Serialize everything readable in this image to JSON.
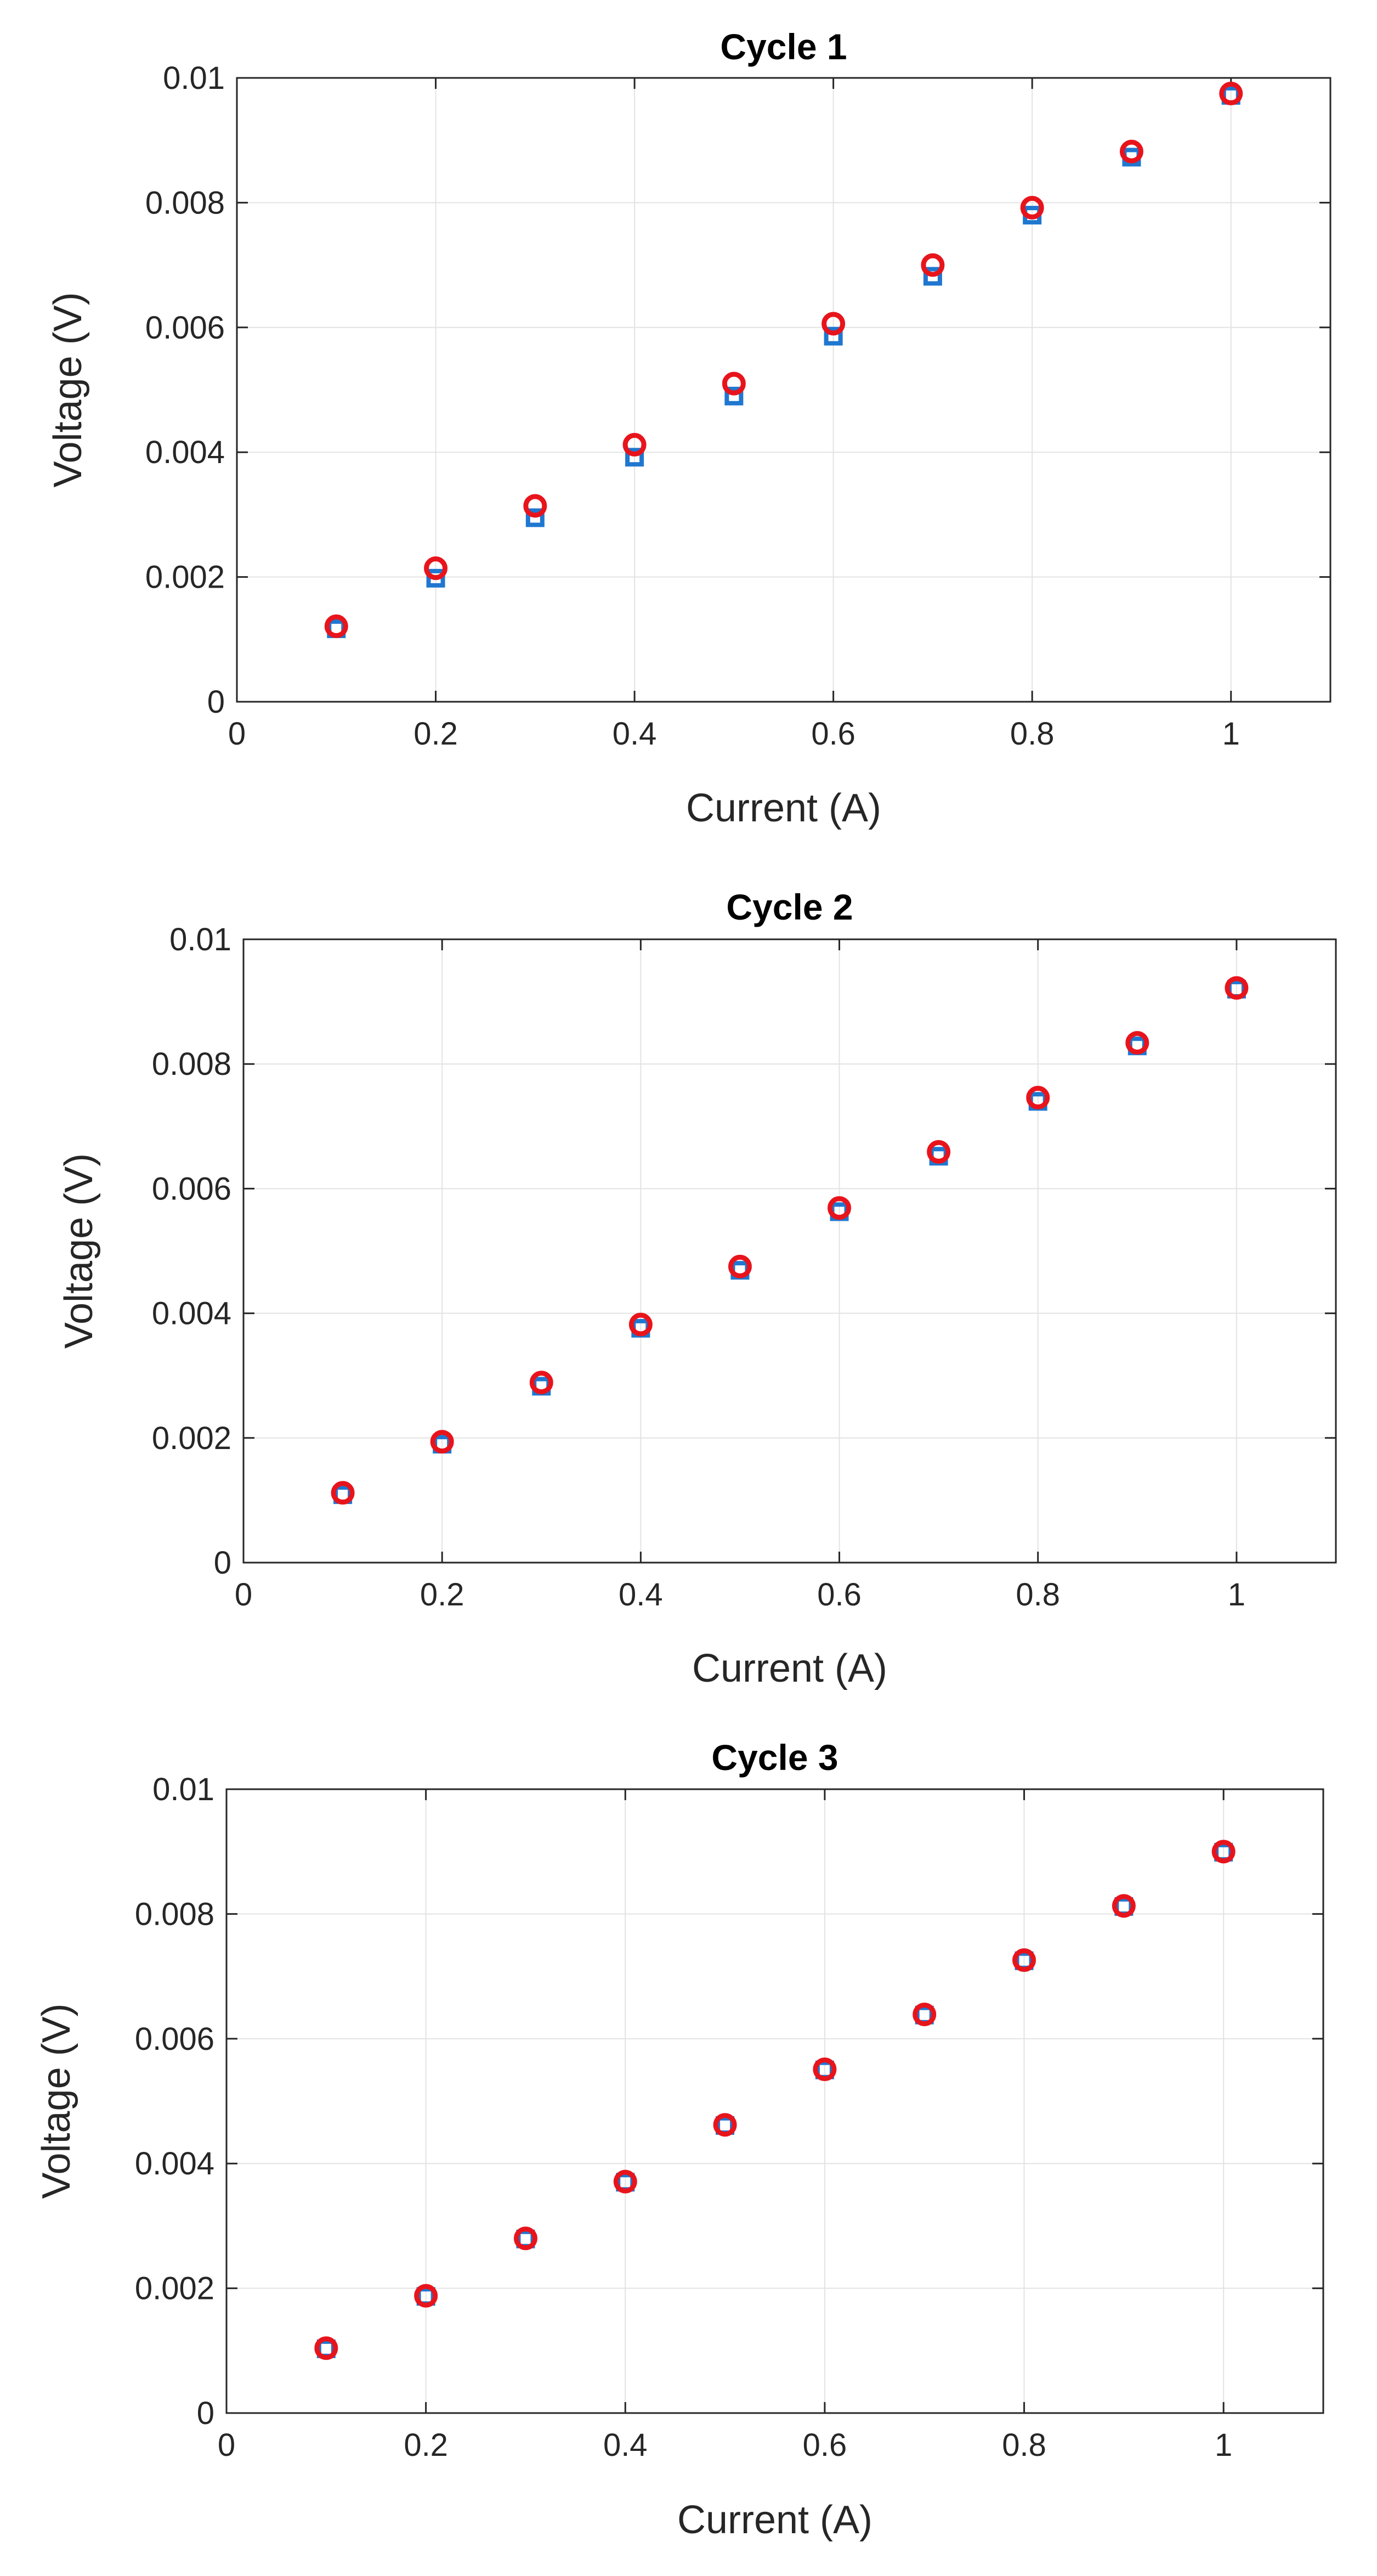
{
  "chart_data": [
    {
      "type": "scatter",
      "title": "Cycle 1",
      "xlabel": "Current (A)",
      "ylabel": "Voltage (V)",
      "xlim": [
        0,
        1.1
      ],
      "ylim": [
        0,
        0.01
      ],
      "xticks": [
        "0",
        "0.2",
        "0.4",
        "0.6",
        "0.8",
        "1"
      ],
      "yticks": [
        "0",
        "0.002",
        "0.004",
        "0.006",
        "0.008",
        "0.01"
      ],
      "grid": true,
      "x": [
        0.1,
        0.2,
        0.3,
        0.4,
        0.5,
        0.6,
        0.7,
        0.8,
        0.9,
        1.0
      ],
      "series": [
        {
          "name": "squares",
          "marker": "square",
          "color": "#1f77d0",
          "values": [
            0.00117,
            0.00198,
            0.00295,
            0.00392,
            0.0049,
            0.00586,
            0.00682,
            0.0078,
            0.00873,
            0.00972
          ]
        },
        {
          "name": "circles",
          "marker": "circle",
          "color": "#e8141c",
          "values": [
            0.00121,
            0.00214,
            0.00314,
            0.00412,
            0.0051,
            0.00606,
            0.007,
            0.00792,
            0.00882,
            0.00975
          ]
        }
      ]
    },
    {
      "type": "scatter",
      "title": "Cycle 2",
      "xlabel": "Current (A)",
      "ylabel": "Voltage (V)",
      "xlim": [
        0,
        1.1
      ],
      "ylim": [
        0,
        0.01
      ],
      "xticks": [
        "0",
        "0.2",
        "0.4",
        "0.6",
        "0.8",
        "1"
      ],
      "yticks": [
        "0",
        "0.002",
        "0.004",
        "0.006",
        "0.008",
        "0.01"
      ],
      "grid": true,
      "x": [
        0.1,
        0.2,
        0.3,
        0.4,
        0.5,
        0.6,
        0.7,
        0.8,
        0.9,
        1.0
      ],
      "series": [
        {
          "name": "squares",
          "marker": "square",
          "color": "#1f77d0",
          "values": [
            0.00109,
            0.0019,
            0.00283,
            0.00376,
            0.00469,
            0.00563,
            0.00652,
            0.0074,
            0.00829,
            0.0092
          ]
        },
        {
          "name": "circles",
          "marker": "circle",
          "color": "#e8141c",
          "values": [
            0.00112,
            0.00194,
            0.00289,
            0.00382,
            0.00475,
            0.00569,
            0.00659,
            0.00746,
            0.00834,
            0.00922
          ]
        }
      ]
    },
    {
      "type": "scatter",
      "title": "Cycle 3",
      "xlabel": "Current (A)",
      "ylabel": "Voltage (V)",
      "xlim": [
        0,
        1.1
      ],
      "ylim": [
        0,
        0.01
      ],
      "xticks": [
        "0",
        "0.2",
        "0.4",
        "0.6",
        "0.8",
        "1"
      ],
      "yticks": [
        "0",
        "0.002",
        "0.004",
        "0.006",
        "0.008",
        "0.01"
      ],
      "grid": true,
      "x": [
        0.1,
        0.2,
        0.3,
        0.4,
        0.5,
        0.6,
        0.7,
        0.8,
        0.9,
        1.0
      ],
      "series": [
        {
          "name": "squares",
          "marker": "square",
          "color": "#1f77d0",
          "values": [
            0.00103,
            0.00187,
            0.00279,
            0.0037,
            0.00461,
            0.0055,
            0.00638,
            0.00725,
            0.00812,
            0.00899
          ]
        },
        {
          "name": "circles",
          "marker": "circle",
          "color": "#e8141c",
          "values": [
            0.00104,
            0.00188,
            0.0028,
            0.00371,
            0.00462,
            0.00551,
            0.00639,
            0.00726,
            0.00813,
            0.009
          ]
        }
      ]
    }
  ]
}
